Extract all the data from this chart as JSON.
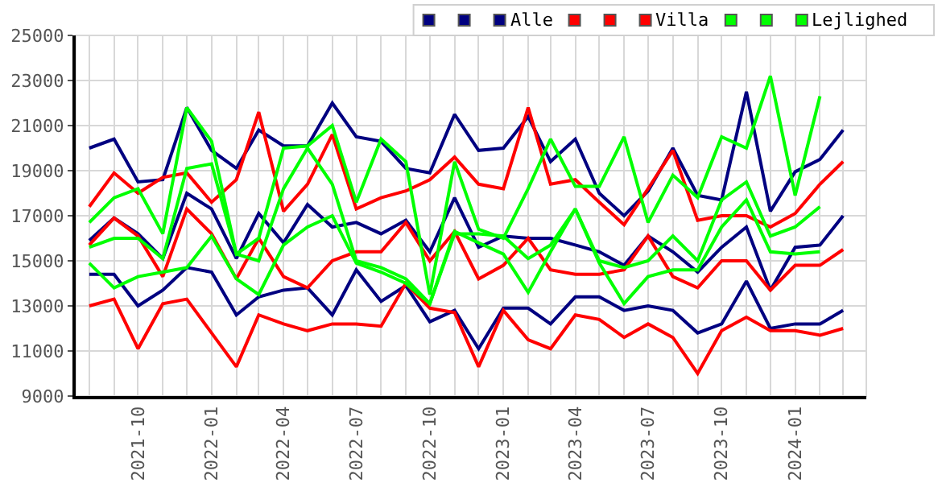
{
  "chart_data": {
    "type": "line",
    "x": [
      "2021-08",
      "2021-09",
      "2021-10",
      "2021-11",
      "2021-12",
      "2022-01",
      "2022-02",
      "2022-03",
      "2022-04",
      "2022-05",
      "2022-06",
      "2022-07",
      "2022-08",
      "2022-09",
      "2022-10",
      "2022-11",
      "2022-12",
      "2023-01",
      "2023-02",
      "2023-03",
      "2023-04",
      "2023-05",
      "2023-06",
      "2023-07",
      "2023-08",
      "2023-09",
      "2023-10",
      "2023-11",
      "2023-12",
      "2024-01",
      "2024-02",
      "2024-03"
    ],
    "series": [
      {
        "color": "#000080",
        "values": [
          20000,
          20400,
          18500,
          18600,
          21800,
          19900,
          19100,
          20800,
          20100,
          20100,
          22000,
          20500,
          20300,
          19100,
          18900,
          21500,
          19900,
          20000,
          21400,
          19400,
          20400,
          18000,
          17000,
          18100,
          20000,
          17900,
          17700,
          22500,
          17200,
          18950,
          19500,
          20800
        ]
      },
      {
        "color": "#000080",
        "values": [
          15900,
          16900,
          16200,
          15100,
          18000,
          17300,
          15100,
          17100,
          15800,
          17500,
          16500,
          16700,
          16200,
          16800,
          15400,
          17800,
          15600,
          16100,
          16000,
          16000,
          15700,
          15400,
          14800,
          16100,
          15400,
          14500,
          15600,
          16500,
          13700,
          15600,
          15700,
          17000
        ]
      },
      {
        "name": "Alle",
        "color": "#000080",
        "values": [
          14400,
          14400,
          13000,
          13700,
          14700,
          14500,
          12600,
          13400,
          13700,
          13800,
          12600,
          14600,
          13200,
          13900,
          12300,
          12800,
          11100,
          12900,
          12900,
          12200,
          13400,
          13400,
          12800,
          13000,
          12800,
          11800,
          12200,
          14100,
          12000,
          12200,
          12200,
          12800
        ]
      },
      {
        "color": "#ff0000",
        "values": [
          17400,
          18900,
          18000,
          18700,
          18900,
          17600,
          18600,
          21600,
          17200,
          18400,
          20600,
          17300,
          17800,
          18100,
          18600,
          19600,
          18400,
          18200,
          21800,
          18400,
          18600,
          17600,
          16600,
          18200,
          19900,
          16800,
          17000,
          17000,
          16500,
          17100,
          18400,
          19400
        ]
      },
      {
        "color": "#ff0000",
        "values": [
          15700,
          16900,
          16100,
          14300,
          17300,
          16200,
          14200,
          16000,
          14300,
          13800,
          15000,
          15400,
          15400,
          16700,
          15000,
          16300,
          14200,
          14800,
          16000,
          14600,
          14400,
          14400,
          14600,
          16100,
          14300,
          13800,
          15000,
          15000,
          13700,
          14800,
          14800,
          15500
        ]
      },
      {
        "name": "Villa",
        "color": "#ff0000",
        "values": [
          13000,
          13300,
          11100,
          13100,
          13300,
          11800,
          10300,
          12600,
          12200,
          11900,
          12200,
          12200,
          12100,
          14000,
          12900,
          12700,
          10300,
          12800,
          11500,
          11100,
          12600,
          12400,
          11600,
          12200,
          11600,
          10000,
          11900,
          12500,
          11900,
          11900,
          11700,
          12000
        ]
      },
      {
        "color": "#00ff00",
        "values": [
          16700,
          17800,
          18200,
          16200,
          21800,
          20300,
          15300,
          16000,
          20000,
          20100,
          21000,
          17600,
          20400,
          19400,
          13500,
          19400,
          16400,
          16000,
          18200,
          20400,
          18300,
          18300,
          20500,
          16700,
          18800,
          17800,
          20500,
          20000,
          23200,
          17900,
          22300,
          null
        ]
      },
      {
        "color": "#00ff00",
        "values": [
          15600,
          16000,
          16000,
          15100,
          19100,
          19300,
          15300,
          15000,
          18200,
          20000,
          18400,
          15000,
          14700,
          14200,
          13100,
          16200,
          16200,
          16100,
          15100,
          15700,
          17300,
          15000,
          14700,
          15000,
          16100,
          15000,
          17700,
          18500,
          16100,
          16500,
          17400,
          null
        ]
      },
      {
        "name": "Lejlighed",
        "color": "#00ff00",
        "values": [
          14900,
          13800,
          14300,
          14500,
          14700,
          16100,
          14200,
          13500,
          15700,
          16500,
          17000,
          14900,
          14500,
          14000,
          13100,
          16300,
          15800,
          15300,
          13600,
          15400,
          17300,
          14900,
          13100,
          14300,
          14600,
          14600,
          16500,
          17700,
          15400,
          15300,
          15400,
          null
        ]
      }
    ],
    "xlim": [
      "2021-07-15",
      "2024-03-30"
    ],
    "xticks": [
      {
        "value": "2021-08",
        "label": null
      },
      {
        "value": "2021-09",
        "label": null
      },
      {
        "value": "2021-10",
        "label": "2021-10"
      },
      {
        "value": "2021-11",
        "label": null
      },
      {
        "value": "2021-12",
        "label": null
      },
      {
        "value": "2022-01",
        "label": "2022-01"
      },
      {
        "value": "2022-02",
        "label": null
      },
      {
        "value": "2022-03",
        "label": null
      },
      {
        "value": "2022-04",
        "label": "2022-04"
      },
      {
        "value": "2022-05",
        "label": null
      },
      {
        "value": "2022-06",
        "label": null
      },
      {
        "value": "2022-07",
        "label": "2022-07"
      },
      {
        "value": "2022-08",
        "label": null
      },
      {
        "value": "2022-09",
        "label": null
      },
      {
        "value": "2022-10",
        "label": "2022-10"
      },
      {
        "value": "2022-11",
        "label": null
      },
      {
        "value": "2022-12",
        "label": null
      },
      {
        "value": "2023-01",
        "label": "2023-01"
      },
      {
        "value": "2023-02",
        "label": null
      },
      {
        "value": "2023-03",
        "label": null
      },
      {
        "value": "2023-04",
        "label": "2023-04"
      },
      {
        "value": "2023-05",
        "label": null
      },
      {
        "value": "2023-06",
        "label": null
      },
      {
        "value": "2023-07",
        "label": "2023-07"
      },
      {
        "value": "2023-08",
        "label": null
      },
      {
        "value": "2023-09",
        "label": null
      },
      {
        "value": "2023-10",
        "label": "2023-10"
      },
      {
        "value": "2023-11",
        "label": null
      },
      {
        "value": "2023-12",
        "label": null
      },
      {
        "value": "2024-01",
        "label": "2024-01"
      },
      {
        "value": "2024-02",
        "label": null
      },
      {
        "value": "2024-03",
        "label": null
      }
    ],
    "ylim": [
      9000,
      25000
    ],
    "yticks": [
      9000,
      11000,
      13000,
      15000,
      17000,
      19000,
      21000,
      23000,
      25000
    ],
    "grid": true,
    "legend": "top right",
    "marker": "none",
    "line_style": "solid"
  }
}
